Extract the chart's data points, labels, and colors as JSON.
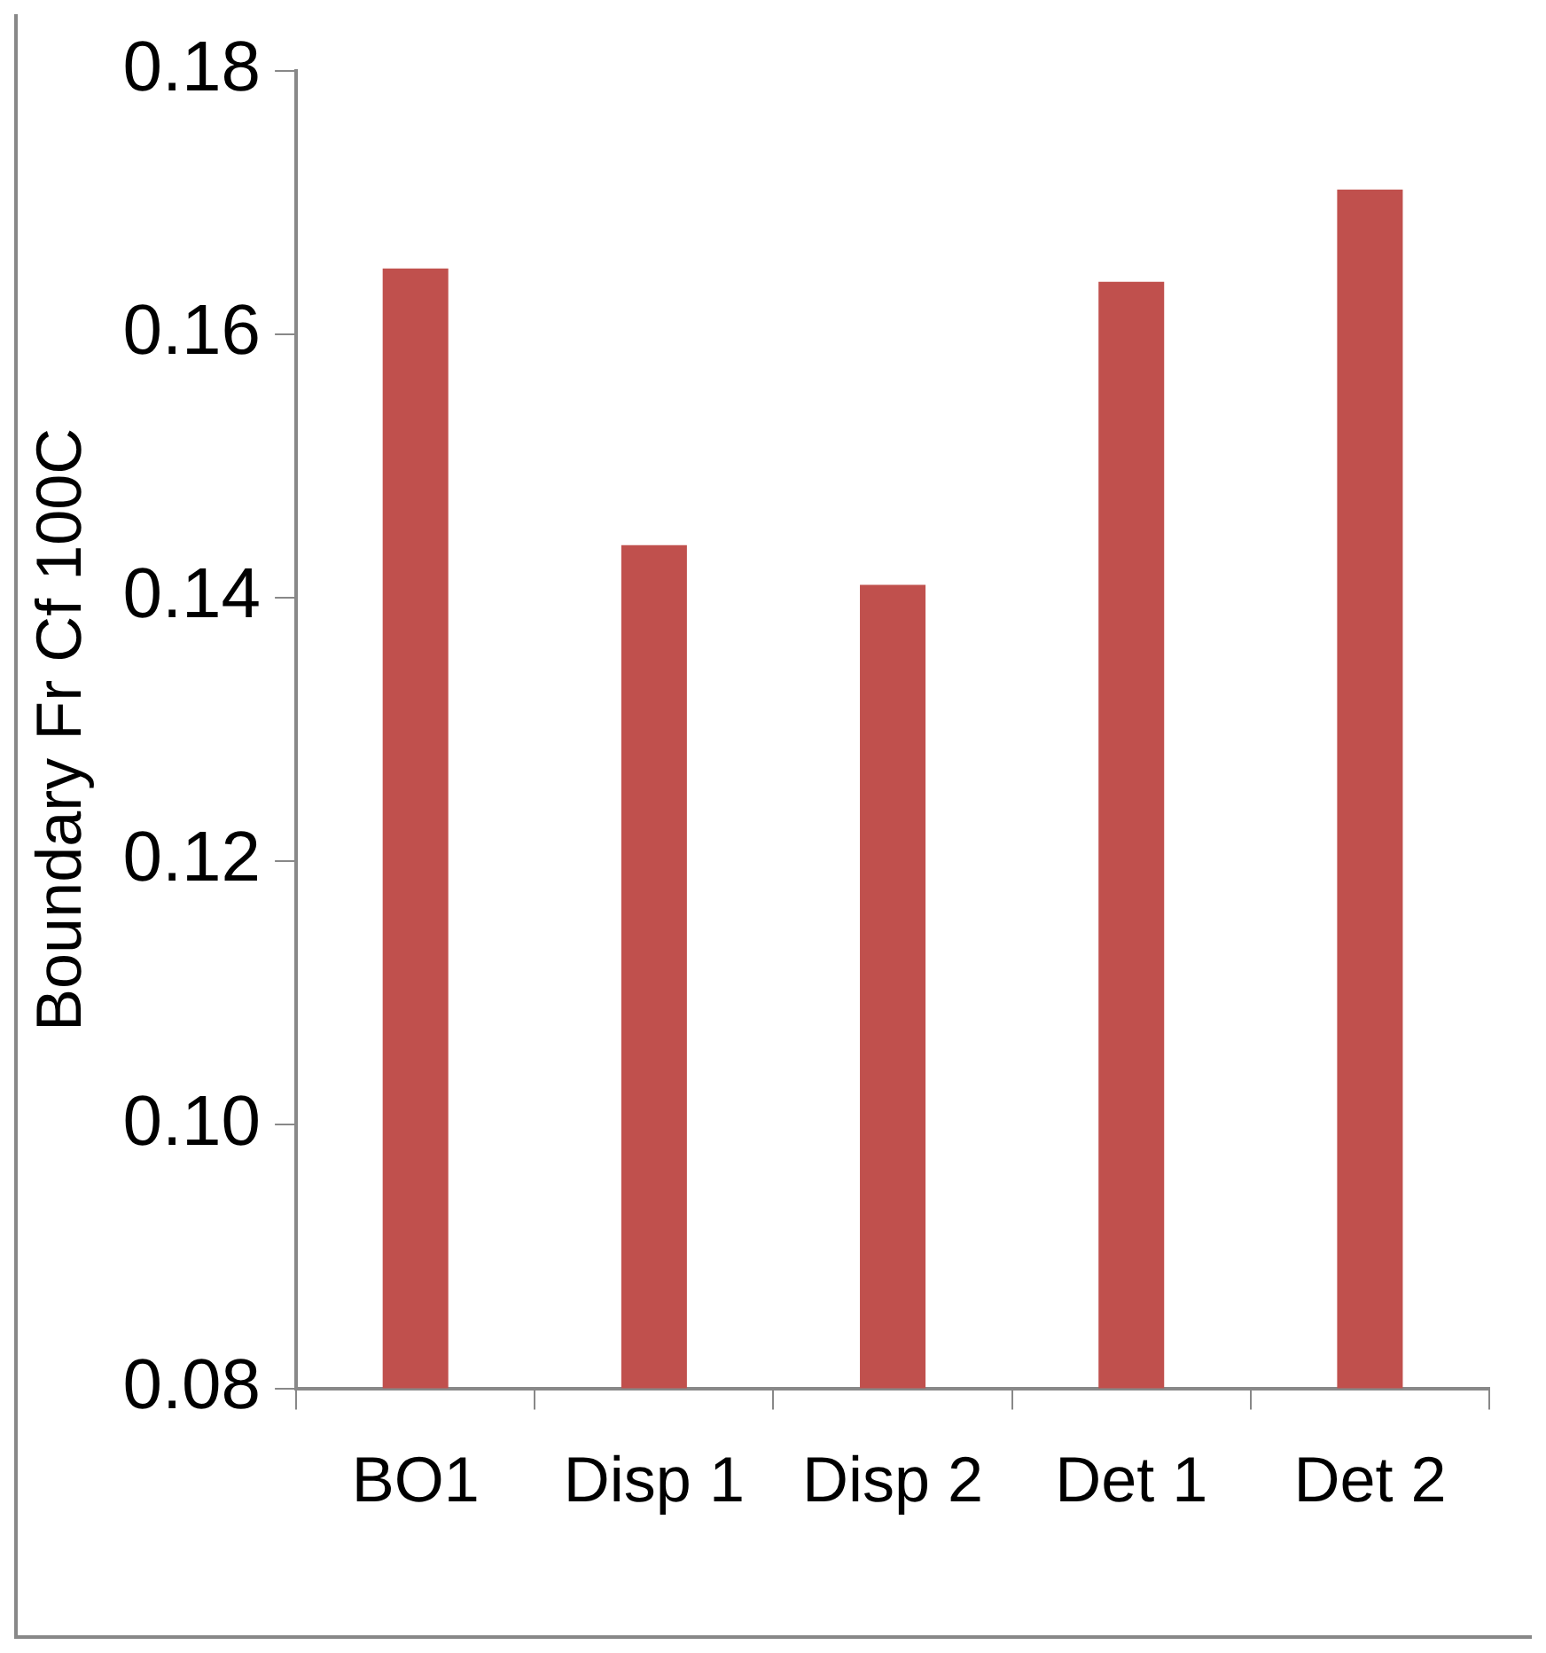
{
  "chart_data": {
    "type": "bar",
    "ylabel": "Boundary Fr Cf 100C",
    "categories": [
      "BO1",
      "Disp 1",
      "Disp 2",
      "Det 1",
      "Det 2"
    ],
    "values": [
      0.165,
      0.144,
      0.141,
      0.164,
      0.171
    ],
    "color": "#c0504d",
    "ylim": [
      0.08,
      0.18
    ],
    "yticks": [
      0.08,
      {
        "value": 0.1,
        "label": "0.10"
      },
      0.12,
      0.14,
      0.16,
      0.18
    ],
    "grid": false,
    "legend": false
  }
}
